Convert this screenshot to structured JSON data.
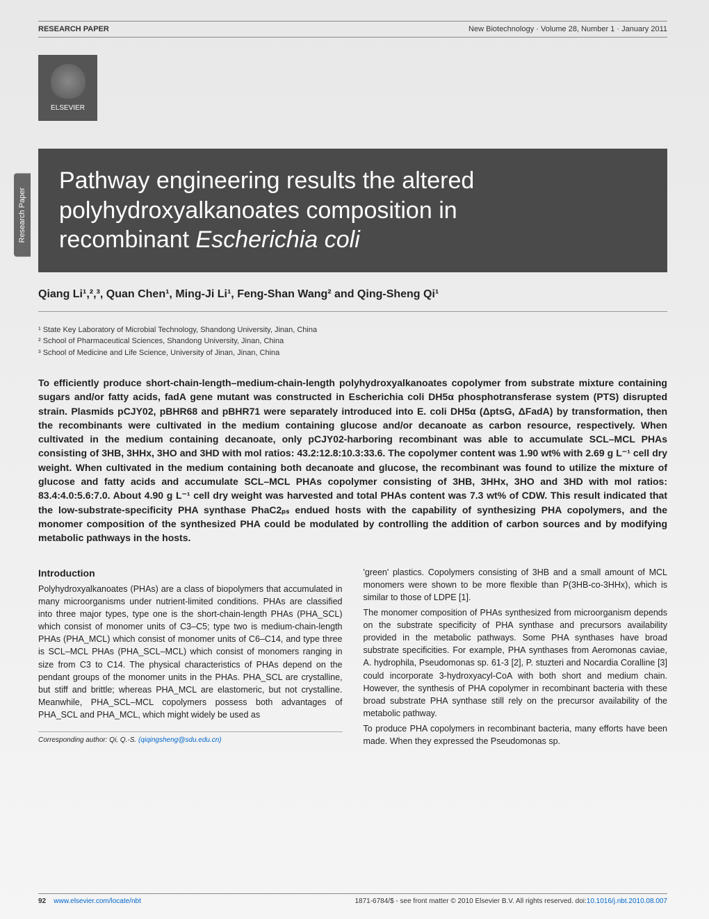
{
  "sideTab": "Research Paper",
  "header": {
    "left": "RESEARCH PAPER",
    "right": "New Biotechnology · Volume 28, Number 1 · January 2011"
  },
  "logo": {
    "publisher": "ELSEVIER"
  },
  "title": {
    "line1": "Pathway engineering results the altered",
    "line2": "polyhydroxyalkanoates composition in",
    "line3_pre": "recombinant ",
    "line3_italic": "Escherichia coli"
  },
  "authors": "Qiang Li¹,²,³, Quan Chen¹, Ming-Ji Li¹, Feng-Shan Wang² and Qing-Sheng Qi¹",
  "affiliations": {
    "a1": "¹ State Key Laboratory of Microbial Technology, Shandong University, Jinan, China",
    "a2": "² School of Pharmaceutical Sciences, Shandong University, Jinan, China",
    "a3": "³ School of Medicine and Life Science, University of Jinan, Jinan, China"
  },
  "abstract": "To efficiently produce short-chain-length–medium-chain-length polyhydroxyalkanoates copolymer from substrate mixture containing sugars and/or fatty acids, fadA gene mutant was constructed in Escherichia coli DH5α phosphotransferase system (PTS) disrupted strain. Plasmids pCJY02, pBHR68 and pBHR71 were separately introduced into E. coli DH5α (ΔptsG, ΔFadA) by transformation, then the recombinants were cultivated in the medium containing glucose and/or decanoate as carbon resource, respectively. When cultivated in the medium containing decanoate, only pCJY02-harboring recombinant was able to accumulate SCL–MCL PHAs consisting of 3HB, 3HHx, 3HO and 3HD with mol ratios: 43.2:12.8:10.3:33.6. The copolymer content was 1.90 wt% with 2.69 g L⁻¹ cell dry weight. When cultivated in the medium containing both decanoate and glucose, the recombinant was found to utilize the mixture of glucose and fatty acids and accumulate SCL–MCL PHAs copolymer consisting of 3HB, 3HHx, 3HO and 3HD with mol ratios: 83.4:4.0:5.6:7.0. About 4.90 g L⁻¹ cell dry weight was harvested and total PHAs content was 7.3 wt% of CDW. This result indicated that the low-substrate-specificity PHA synthase PhaC2ₚₛ endued hosts with the capability of synthesizing PHA copolymers, and the monomer composition of the synthesized PHA could be modulated by controlling the addition of carbon sources and by modifying metabolic pathways in the hosts.",
  "introHeading": "Introduction",
  "introCol1": "Polyhydroxyalkanoates (PHAs) are a class of biopolymers that accumulated in many microorganisms under nutrient-limited conditions. PHAs are classified into three major types, type one is the short-chain-length PHAs (PHA_SCL) which consist of monomer units of C3–C5; type two is medium-chain-length PHAs (PHA_MCL) which consist of monomer units of C6–C14, and type three is SCL–MCL PHAs (PHA_SCL–MCL) which consist of monomers ranging in size from C3 to C14. The physical characteristics of PHAs depend on the pendant groups of the monomer units in the PHAs. PHA_SCL are crystalline, but stiff and brittle; whereas PHA_MCL are elastomeric, but not crystalline. Meanwhile, PHA_SCL–MCL copolymers possess both advantages of PHA_SCL and PHA_MCL, which might widely be used as",
  "introCol2_p1": "'green' plastics. Copolymers consisting of 3HB and a small amount of MCL monomers were shown to be more flexible than P(3HB-co-3HHx), which is similar to those of LDPE [1].",
  "introCol2_p2": "The monomer composition of PHAs synthesized from microorganism depends on the substrate specificity of PHA synthase and precursors availability provided in the metabolic pathways. Some PHA synthases have broad substrate specificities. For example, PHA synthases from Aeromonas caviae, A. hydrophila, Pseudomonas sp. 61-3 [2], P. stuzteri and Nocardia Coralline [3] could incorporate 3-hydroxyacyl-CoA with both short and medium chain. However, the synthesis of PHA copolymer in recombinant bacteria with these broad substrate PHA synthase still rely on the precursor availability of the metabolic pathway.",
  "introCol2_p3": "To produce PHA copolymers in recombinant bacteria, many efforts have been made. When they expressed the Pseudomonas sp.",
  "corresponding": {
    "label": "Corresponding author: Qi, Q.-S. ",
    "email": "(qiqingsheng@sdu.edu.cn)"
  },
  "footer": {
    "pageNum": "92",
    "url": "www.elsevier.com/locate/nbt",
    "rights": "1871-6784/$ - see front matter © 2010 Elsevier B.V. All rights reserved. doi:",
    "doi": "10.1016/j.nbt.2010.08.007"
  },
  "colors": {
    "titleBg": "#4a4a4a",
    "link": "#0066cc",
    "pageBg": "#ededed"
  }
}
